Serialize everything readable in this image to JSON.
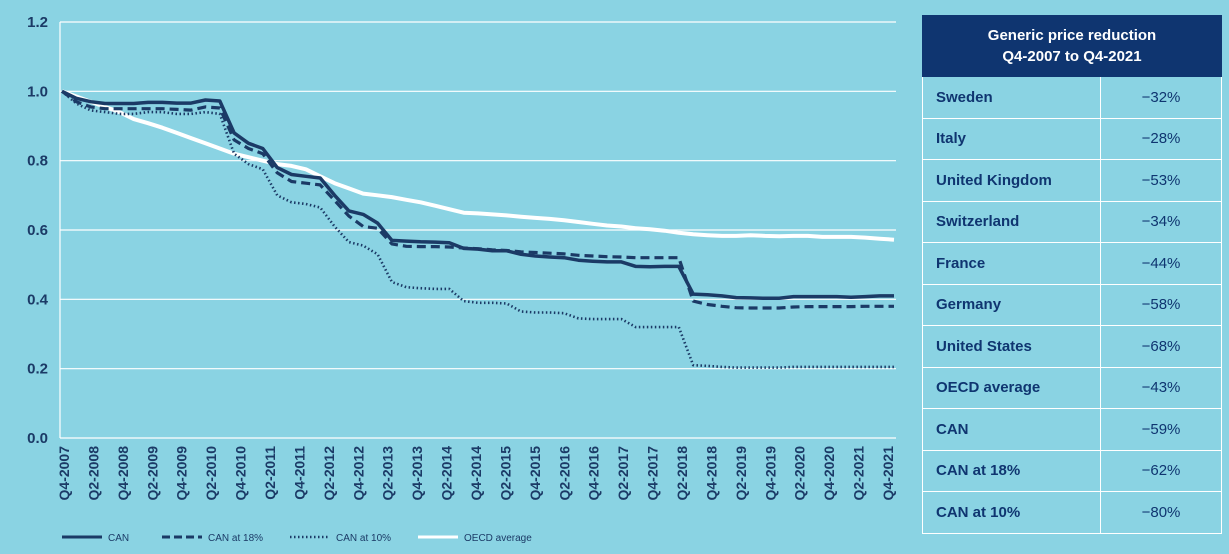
{
  "chart_data": {
    "type": "line",
    "title": "",
    "xlabel": "",
    "ylabel": "",
    "ylim": [
      0,
      1.2
    ],
    "yticks": [
      "0.0",
      "0.2",
      "0.4",
      "0.6",
      "0.8",
      "1.0",
      "1.2"
    ],
    "grid": "horizontal",
    "legend_position": "bottom-left",
    "x_labels": [
      "Q4-2007",
      "Q2-2008",
      "Q4-2008",
      "Q2-2009",
      "Q4-2009",
      "Q2-2010",
      "Q4-2010",
      "Q2-2011",
      "Q4-2011",
      "Q2-2012",
      "Q4-2012",
      "Q2-2013",
      "Q4-2013",
      "Q2-2014",
      "Q4-2014",
      "Q2-2015",
      "Q4-2015",
      "Q2-2016",
      "Q4-2016",
      "Q2-2017",
      "Q4-2017",
      "Q2-2018",
      "Q4-2018",
      "Q2-2019",
      "Q4-2019",
      "Q2-2020",
      "Q4-2020",
      "Q2-2021",
      "Q4-2021"
    ],
    "series": [
      {
        "name": "CAN",
        "color": "#1b3a66",
        "style": "solid",
        "values": [
          1.0,
          0.98,
          0.97,
          0.965,
          0.965,
          0.965,
          0.968,
          0.968,
          0.966,
          0.966,
          0.975,
          0.972,
          0.88,
          0.85,
          0.835,
          0.78,
          0.76,
          0.755,
          0.75,
          0.7,
          0.655,
          0.645,
          0.62,
          0.57,
          0.568,
          0.566,
          0.565,
          0.563,
          0.547,
          0.545,
          0.54,
          0.54,
          0.53,
          0.525,
          0.522,
          0.52,
          0.513,
          0.51,
          0.508,
          0.508,
          0.495,
          0.494,
          0.495,
          0.495,
          0.415,
          0.413,
          0.41,
          0.405,
          0.404,
          0.403,
          0.403,
          0.408,
          0.408,
          0.408,
          0.408,
          0.406,
          0.408,
          0.41,
          0.41
        ]
      },
      {
        "name": "CAN at 18%",
        "color": "#1b3a66",
        "style": "dashed",
        "values": [
          1.0,
          0.97,
          0.955,
          0.95,
          0.95,
          0.95,
          0.95,
          0.95,
          0.948,
          0.946,
          0.955,
          0.952,
          0.86,
          0.835,
          0.82,
          0.765,
          0.74,
          0.735,
          0.73,
          0.685,
          0.64,
          0.61,
          0.605,
          0.56,
          0.553,
          0.552,
          0.552,
          0.551,
          0.548,
          0.546,
          0.543,
          0.541,
          0.537,
          0.535,
          0.533,
          0.531,
          0.527,
          0.525,
          0.523,
          0.522,
          0.52,
          0.52,
          0.52,
          0.52,
          0.395,
          0.385,
          0.38,
          0.376,
          0.375,
          0.375,
          0.375,
          0.378,
          0.379,
          0.379,
          0.379,
          0.379,
          0.38,
          0.38,
          0.38
        ]
      },
      {
        "name": "CAN at 10%",
        "color": "#1b3a66",
        "style": "dotted",
        "values": [
          1.0,
          0.965,
          0.945,
          0.94,
          0.935,
          0.935,
          0.94,
          0.94,
          0.935,
          0.935,
          0.94,
          0.935,
          0.82,
          0.79,
          0.775,
          0.7,
          0.68,
          0.675,
          0.665,
          0.61,
          0.565,
          0.555,
          0.53,
          0.45,
          0.435,
          0.432,
          0.43,
          0.43,
          0.395,
          0.39,
          0.39,
          0.388,
          0.365,
          0.362,
          0.362,
          0.36,
          0.345,
          0.343,
          0.343,
          0.343,
          0.32,
          0.32,
          0.32,
          0.32,
          0.21,
          0.208,
          0.205,
          0.203,
          0.203,
          0.203,
          0.203,
          0.205,
          0.205,
          0.205,
          0.205,
          0.205,
          0.205,
          0.205,
          0.205
        ]
      },
      {
        "name": "OECD average",
        "color": "#ffffff",
        "style": "solid",
        "values": [
          1.0,
          0.985,
          0.97,
          0.955,
          0.94,
          0.92,
          0.908,
          0.895,
          0.88,
          0.865,
          0.85,
          0.835,
          0.82,
          0.81,
          0.8,
          0.79,
          0.785,
          0.775,
          0.755,
          0.735,
          0.72,
          0.705,
          0.7,
          0.695,
          0.687,
          0.68,
          0.67,
          0.66,
          0.65,
          0.648,
          0.645,
          0.642,
          0.638,
          0.635,
          0.632,
          0.628,
          0.623,
          0.618,
          0.613,
          0.61,
          0.605,
          0.602,
          0.598,
          0.592,
          0.588,
          0.585,
          0.583,
          0.583,
          0.585,
          0.583,
          0.582,
          0.583,
          0.583,
          0.58,
          0.58,
          0.58,
          0.578,
          0.575,
          0.572
        ]
      }
    ]
  },
  "table": {
    "header_line1": "Generic price reduction",
    "header_line2": "Q4-2007 to Q4-2021",
    "rows": [
      {
        "country": "Sweden",
        "value": "−32%"
      },
      {
        "country": "Italy",
        "value": "−28%"
      },
      {
        "country": "United Kingdom",
        "value": "−53%"
      },
      {
        "country": "Switzerland",
        "value": "−34%"
      },
      {
        "country": "France",
        "value": "−44%"
      },
      {
        "country": "Germany",
        "value": "−58%"
      },
      {
        "country": "United States",
        "value": "−68%"
      },
      {
        "country": "OECD average",
        "value": "−43%"
      },
      {
        "country": "CAN",
        "value": "−59%"
      },
      {
        "country": "CAN at 18%",
        "value": "−62%"
      },
      {
        "country": "CAN at 10%",
        "value": "−80%"
      }
    ]
  }
}
